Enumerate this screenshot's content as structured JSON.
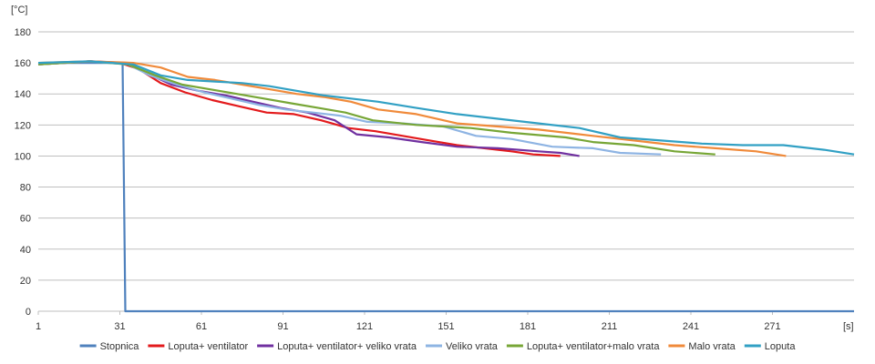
{
  "chart_data": {
    "type": "line",
    "title": "",
    "xlabel": "[s]",
    "ylabel": "[°C]",
    "xlim": [
      1,
      301
    ],
    "ylim": [
      0,
      180
    ],
    "x_ticks": [
      1,
      31,
      61,
      91,
      121,
      151,
      181,
      211,
      241,
      271
    ],
    "y_ticks": [
      0,
      20,
      40,
      60,
      80,
      100,
      120,
      140,
      160,
      180
    ],
    "grid": true,
    "legend_position": "bottom",
    "series": [
      {
        "name": "Stopnica",
        "color": "#4f81bd",
        "points": [
          [
            1,
            160
          ],
          [
            32,
            160
          ],
          [
            33,
            0
          ],
          [
            301,
            0
          ]
        ]
      },
      {
        "name": "Loputa+ ventilator",
        "color": "#e31a1c",
        "points": [
          [
            1,
            159
          ],
          [
            20,
            161
          ],
          [
            31,
            160
          ],
          [
            38,
            156
          ],
          [
            46,
            147
          ],
          [
            55,
            141
          ],
          [
            65,
            136
          ],
          [
            75,
            132
          ],
          [
            85,
            128
          ],
          [
            95,
            127
          ],
          [
            105,
            123
          ],
          [
            115,
            118
          ],
          [
            125,
            116
          ],
          [
            135,
            113
          ],
          [
            145,
            110
          ],
          [
            155,
            107
          ],
          [
            165,
            105
          ],
          [
            175,
            103
          ],
          [
            183,
            101
          ],
          [
            193,
            100
          ]
        ]
      },
      {
        "name": "Loputa+ ventilator+ veliko vrata",
        "color": "#7030a0",
        "points": [
          [
            1,
            159
          ],
          [
            20,
            161
          ],
          [
            34,
            160
          ],
          [
            40,
            154
          ],
          [
            50,
            146
          ],
          [
            60,
            142
          ],
          [
            70,
            139
          ],
          [
            80,
            135
          ],
          [
            90,
            131
          ],
          [
            100,
            128
          ],
          [
            110,
            123
          ],
          [
            118,
            114
          ],
          [
            130,
            112
          ],
          [
            142,
            109
          ],
          [
            155,
            106
          ],
          [
            170,
            105
          ],
          [
            185,
            103
          ],
          [
            193,
            102
          ],
          [
            200,
            100
          ]
        ]
      },
      {
        "name": "Veliko vrata",
        "color": "#8eb4e3",
        "points": [
          [
            1,
            159
          ],
          [
            20,
            161
          ],
          [
            34,
            159
          ],
          [
            42,
            152
          ],
          [
            52,
            146
          ],
          [
            62,
            141
          ],
          [
            72,
            137
          ],
          [
            82,
            133
          ],
          [
            92,
            130
          ],
          [
            102,
            128
          ],
          [
            112,
            126
          ],
          [
            122,
            122
          ],
          [
            135,
            121
          ],
          [
            150,
            119
          ],
          [
            162,
            113
          ],
          [
            175,
            111
          ],
          [
            190,
            106
          ],
          [
            205,
            105
          ],
          [
            215,
            102
          ],
          [
            230,
            101
          ]
        ]
      },
      {
        "name": "Loputa+ ventilator+malo vrata",
        "color": "#77a636",
        "points": [
          [
            1,
            159
          ],
          [
            20,
            161
          ],
          [
            34,
            159
          ],
          [
            44,
            152
          ],
          [
            54,
            146
          ],
          [
            64,
            143
          ],
          [
            74,
            140
          ],
          [
            84,
            137
          ],
          [
            94,
            134
          ],
          [
            104,
            131
          ],
          [
            114,
            128
          ],
          [
            124,
            123
          ],
          [
            140,
            120
          ],
          [
            160,
            118
          ],
          [
            175,
            115
          ],
          [
            195,
            112
          ],
          [
            205,
            109
          ],
          [
            220,
            107
          ],
          [
            235,
            103
          ],
          [
            250,
            101
          ]
        ]
      },
      {
        "name": "Malo vrata",
        "color": "#f08a3a",
        "points": [
          [
            1,
            160
          ],
          [
            20,
            161
          ],
          [
            36,
            160
          ],
          [
            46,
            157
          ],
          [
            56,
            151
          ],
          [
            66,
            149
          ],
          [
            76,
            146
          ],
          [
            86,
            143
          ],
          [
            96,
            140
          ],
          [
            106,
            138
          ],
          [
            116,
            135
          ],
          [
            126,
            130
          ],
          [
            140,
            127
          ],
          [
            155,
            121
          ],
          [
            170,
            119
          ],
          [
            185,
            117
          ],
          [
            205,
            113
          ],
          [
            220,
            110
          ],
          [
            235,
            107
          ],
          [
            250,
            105
          ],
          [
            265,
            103
          ],
          [
            276,
            100
          ]
        ]
      },
      {
        "name": "Loputa",
        "color": "#31a0c4",
        "points": [
          [
            1,
            160
          ],
          [
            20,
            161
          ],
          [
            36,
            159
          ],
          [
            46,
            152
          ],
          [
            56,
            149
          ],
          [
            66,
            148
          ],
          [
            76,
            147
          ],
          [
            86,
            145
          ],
          [
            96,
            142
          ],
          [
            106,
            139
          ],
          [
            116,
            137
          ],
          [
            126,
            135
          ],
          [
            140,
            131
          ],
          [
            155,
            127
          ],
          [
            170,
            124
          ],
          [
            185,
            121
          ],
          [
            200,
            118
          ],
          [
            215,
            112
          ],
          [
            230,
            110
          ],
          [
            245,
            108
          ],
          [
            260,
            107
          ],
          [
            275,
            107
          ],
          [
            290,
            104
          ],
          [
            301,
            101
          ]
        ]
      }
    ]
  }
}
